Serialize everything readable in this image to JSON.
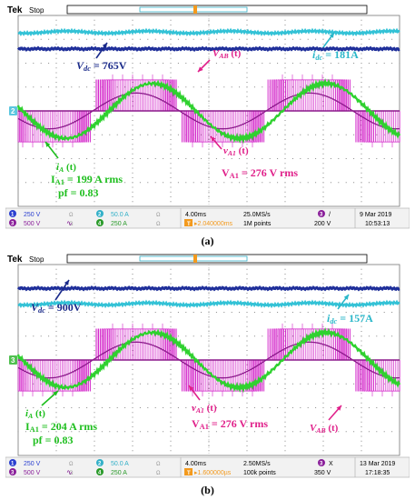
{
  "colors": {
    "vdc": "#1f2f9a",
    "idc": "#33c2d6",
    "vab": "#d21fc8",
    "v1": "#8b1a8b",
    "ia": "#2fd12f",
    "annot_blue": "#1a2a8a",
    "annot_cyan": "#2ab7c9",
    "annot_magenta": "#e0208a",
    "annot_green": "#1fbf1f"
  },
  "chart_data": [
    {
      "type": "line",
      "panel_caption": "(a)",
      "header": {
        "brand": "Tek",
        "mode": "Stop"
      },
      "timebase": {
        "per_div": "4.00ms",
        "sample_rate": "25.0MS/s",
        "record": "1M points",
        "trigger_pos": "2.040000ms"
      },
      "channels": [
        {
          "num": "1",
          "scale": "250 V"
        },
        {
          "num": "2",
          "scale": "50.0 A"
        },
        {
          "num": "3",
          "scale": "500 V"
        },
        {
          "num": "4",
          "scale": "250 A"
        }
      ],
      "trigger": {
        "channel": "3",
        "slope": "/",
        "level": "200 V"
      },
      "datetime": {
        "date": "9 Mar 2019",
        "time": "10:53:13"
      },
      "labels": {
        "vdc": "V_dc = 765V",
        "idc": "i_dc = 181A",
        "vab": "V_AB (t)",
        "va1": "v_A1 (t)",
        "ia": "i_A (t)",
        "ia_rms": "I_A1 = 199 A rms",
        "pf": "pf = 0.83",
        "v1_rms": "V_A1 = 276 V rms"
      },
      "vdc_level_div": 2.6,
      "idc_level_div": 3.3,
      "ia_amp_div": 1.15,
      "ia_lag_deg": 34,
      "v1_amp_div": 0.75,
      "vab_amp_div": 1.3,
      "cycles": 2.2,
      "start_phase_deg": 205
    },
    {
      "type": "line",
      "panel_caption": "(b)",
      "header": {
        "brand": "Tek",
        "mode": "Stop"
      },
      "timebase": {
        "per_div": "4.00ms",
        "sample_rate": "2.50MS/s",
        "record": "100k points",
        "trigger_pos": "1.600000µs"
      },
      "channels": [
        {
          "num": "1",
          "scale": "250 V"
        },
        {
          "num": "2",
          "scale": "50.0 A"
        },
        {
          "num": "3",
          "scale": "500 V"
        },
        {
          "num": "4",
          "scale": "250 A"
        }
      ],
      "trigger": {
        "channel": "3",
        "slope": "X",
        "level": "350 V"
      },
      "datetime": {
        "date": "13 Mar 2019",
        "time": "17:18:35"
      },
      "labels": {
        "vdc": "V_dc = 900V",
        "idc": "i_dc = 157A",
        "vab": "V_AB (t)",
        "va1": "v_A1 (t)",
        "ia": "i_A (t)",
        "ia_rms": "I_A1 = 204 A rms",
        "pf": "pf = 0.83",
        "v1_rms": "V_A1 = 276 V rms"
      },
      "vdc_level_div": 3.0,
      "idc_level_div": 2.35,
      "ia_amp_div": 1.15,
      "ia_lag_deg": 34,
      "v1_amp_div": 0.75,
      "vab_amp_div": 1.3,
      "cycles": 2.2,
      "start_phase_deg": 205
    }
  ]
}
